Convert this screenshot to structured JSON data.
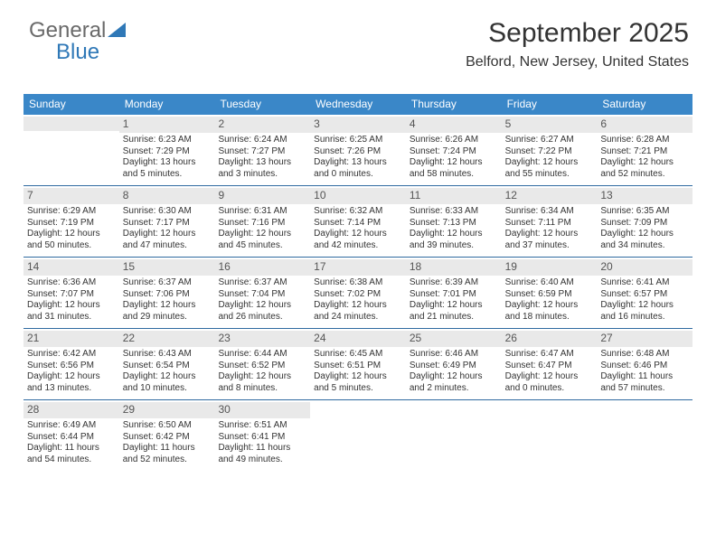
{
  "logo": {
    "word1": "General",
    "word2": "Blue",
    "triangle_color": "#2f78b7"
  },
  "header": {
    "month_year": "September 2025",
    "location": "Belford, New Jersey, United States"
  },
  "colors": {
    "header_bar": "#3a87c8",
    "header_text": "#ffffff",
    "daynum_bg": "#e9e9e9",
    "week_divider": "#2f6aa0",
    "body_text": "#333333"
  },
  "days_of_week": [
    "Sunday",
    "Monday",
    "Tuesday",
    "Wednesday",
    "Thursday",
    "Friday",
    "Saturday"
  ],
  "weeks": [
    [
      null,
      {
        "n": "1",
        "sr": "Sunrise: 6:23 AM",
        "ss": "Sunset: 7:29 PM",
        "dl": "Daylight: 13 hours and 5 minutes."
      },
      {
        "n": "2",
        "sr": "Sunrise: 6:24 AM",
        "ss": "Sunset: 7:27 PM",
        "dl": "Daylight: 13 hours and 3 minutes."
      },
      {
        "n": "3",
        "sr": "Sunrise: 6:25 AM",
        "ss": "Sunset: 7:26 PM",
        "dl": "Daylight: 13 hours and 0 minutes."
      },
      {
        "n": "4",
        "sr": "Sunrise: 6:26 AM",
        "ss": "Sunset: 7:24 PM",
        "dl": "Daylight: 12 hours and 58 minutes."
      },
      {
        "n": "5",
        "sr": "Sunrise: 6:27 AM",
        "ss": "Sunset: 7:22 PM",
        "dl": "Daylight: 12 hours and 55 minutes."
      },
      {
        "n": "6",
        "sr": "Sunrise: 6:28 AM",
        "ss": "Sunset: 7:21 PM",
        "dl": "Daylight: 12 hours and 52 minutes."
      }
    ],
    [
      {
        "n": "7",
        "sr": "Sunrise: 6:29 AM",
        "ss": "Sunset: 7:19 PM",
        "dl": "Daylight: 12 hours and 50 minutes."
      },
      {
        "n": "8",
        "sr": "Sunrise: 6:30 AM",
        "ss": "Sunset: 7:17 PM",
        "dl": "Daylight: 12 hours and 47 minutes."
      },
      {
        "n": "9",
        "sr": "Sunrise: 6:31 AM",
        "ss": "Sunset: 7:16 PM",
        "dl": "Daylight: 12 hours and 45 minutes."
      },
      {
        "n": "10",
        "sr": "Sunrise: 6:32 AM",
        "ss": "Sunset: 7:14 PM",
        "dl": "Daylight: 12 hours and 42 minutes."
      },
      {
        "n": "11",
        "sr": "Sunrise: 6:33 AM",
        "ss": "Sunset: 7:13 PM",
        "dl": "Daylight: 12 hours and 39 minutes."
      },
      {
        "n": "12",
        "sr": "Sunrise: 6:34 AM",
        "ss": "Sunset: 7:11 PM",
        "dl": "Daylight: 12 hours and 37 minutes."
      },
      {
        "n": "13",
        "sr": "Sunrise: 6:35 AM",
        "ss": "Sunset: 7:09 PM",
        "dl": "Daylight: 12 hours and 34 minutes."
      }
    ],
    [
      {
        "n": "14",
        "sr": "Sunrise: 6:36 AM",
        "ss": "Sunset: 7:07 PM",
        "dl": "Daylight: 12 hours and 31 minutes."
      },
      {
        "n": "15",
        "sr": "Sunrise: 6:37 AM",
        "ss": "Sunset: 7:06 PM",
        "dl": "Daylight: 12 hours and 29 minutes."
      },
      {
        "n": "16",
        "sr": "Sunrise: 6:37 AM",
        "ss": "Sunset: 7:04 PM",
        "dl": "Daylight: 12 hours and 26 minutes."
      },
      {
        "n": "17",
        "sr": "Sunrise: 6:38 AM",
        "ss": "Sunset: 7:02 PM",
        "dl": "Daylight: 12 hours and 24 minutes."
      },
      {
        "n": "18",
        "sr": "Sunrise: 6:39 AM",
        "ss": "Sunset: 7:01 PM",
        "dl": "Daylight: 12 hours and 21 minutes."
      },
      {
        "n": "19",
        "sr": "Sunrise: 6:40 AM",
        "ss": "Sunset: 6:59 PM",
        "dl": "Daylight: 12 hours and 18 minutes."
      },
      {
        "n": "20",
        "sr": "Sunrise: 6:41 AM",
        "ss": "Sunset: 6:57 PM",
        "dl": "Daylight: 12 hours and 16 minutes."
      }
    ],
    [
      {
        "n": "21",
        "sr": "Sunrise: 6:42 AM",
        "ss": "Sunset: 6:56 PM",
        "dl": "Daylight: 12 hours and 13 minutes."
      },
      {
        "n": "22",
        "sr": "Sunrise: 6:43 AM",
        "ss": "Sunset: 6:54 PM",
        "dl": "Daylight: 12 hours and 10 minutes."
      },
      {
        "n": "23",
        "sr": "Sunrise: 6:44 AM",
        "ss": "Sunset: 6:52 PM",
        "dl": "Daylight: 12 hours and 8 minutes."
      },
      {
        "n": "24",
        "sr": "Sunrise: 6:45 AM",
        "ss": "Sunset: 6:51 PM",
        "dl": "Daylight: 12 hours and 5 minutes."
      },
      {
        "n": "25",
        "sr": "Sunrise: 6:46 AM",
        "ss": "Sunset: 6:49 PM",
        "dl": "Daylight: 12 hours and 2 minutes."
      },
      {
        "n": "26",
        "sr": "Sunrise: 6:47 AM",
        "ss": "Sunset: 6:47 PM",
        "dl": "Daylight: 12 hours and 0 minutes."
      },
      {
        "n": "27",
        "sr": "Sunrise: 6:48 AM",
        "ss": "Sunset: 6:46 PM",
        "dl": "Daylight: 11 hours and 57 minutes."
      }
    ],
    [
      {
        "n": "28",
        "sr": "Sunrise: 6:49 AM",
        "ss": "Sunset: 6:44 PM",
        "dl": "Daylight: 11 hours and 54 minutes."
      },
      {
        "n": "29",
        "sr": "Sunrise: 6:50 AM",
        "ss": "Sunset: 6:42 PM",
        "dl": "Daylight: 11 hours and 52 minutes."
      },
      {
        "n": "30",
        "sr": "Sunrise: 6:51 AM",
        "ss": "Sunset: 6:41 PM",
        "dl": "Daylight: 11 hours and 49 minutes."
      },
      null,
      null,
      null,
      null
    ]
  ]
}
